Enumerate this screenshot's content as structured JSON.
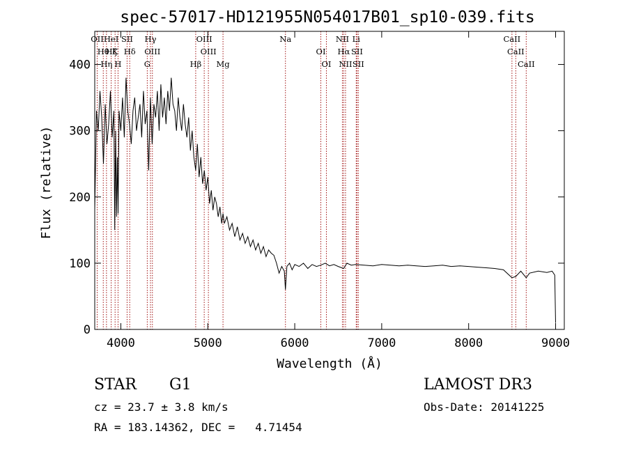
{
  "chart_data": {
    "type": "line",
    "title": "spec-57017-HD121955N054017B01_sp10-039.fits",
    "xlabel": "Wavelength (Å)",
    "ylabel": "Flux (relative)",
    "xlim": [
      3700,
      9100
    ],
    "ylim": [
      0,
      450
    ],
    "xticks": [
      4000,
      5000,
      6000,
      7000,
      8000,
      9000
    ],
    "yticks": [
      0,
      100,
      200,
      300,
      400
    ],
    "grid": false,
    "series": [
      {
        "x": [
          3700,
          3720,
          3740,
          3760,
          3780,
          3800,
          3820,
          3840,
          3860,
          3880,
          3900,
          3920,
          3930,
          3940,
          3950,
          3960,
          3968,
          3980,
          4000,
          4020,
          4040,
          4060,
          4080,
          4100,
          4120,
          4140,
          4160,
          4180,
          4200,
          4220,
          4240,
          4260,
          4280,
          4300,
          4320,
          4340,
          4360,
          4380,
          4400,
          4420,
          4440,
          4460,
          4480,
          4500,
          4520,
          4540,
          4560,
          4580,
          4600,
          4620,
          4640,
          4660,
          4680,
          4700,
          4720,
          4740,
          4760,
          4780,
          4800,
          4820,
          4840,
          4861,
          4880,
          4900,
          4920,
          4940,
          4960,
          4980,
          5000,
          5020,
          5040,
          5060,
          5080,
          5100,
          5120,
          5140,
          5160,
          5175,
          5190,
          5220,
          5250,
          5280,
          5310,
          5340,
          5370,
          5400,
          5430,
          5460,
          5490,
          5520,
          5550,
          5580,
          5610,
          5640,
          5670,
          5700,
          5730,
          5760,
          5790,
          5820,
          5850,
          5880,
          5893,
          5910,
          5940,
          5970,
          6000,
          6050,
          6100,
          6150,
          6200,
          6250,
          6300,
          6350,
          6400,
          6450,
          6500,
          6563,
          6600,
          6650,
          6700,
          6800,
          6900,
          7000,
          7100,
          7200,
          7300,
          7400,
          7500,
          7600,
          7700,
          7800,
          7900,
          8000,
          8100,
          8200,
          8300,
          8400,
          8498,
          8542,
          8600,
          8662,
          8700,
          8800,
          8900,
          8960,
          8990,
          9000
        ],
        "values": [
          180,
          330,
          300,
          360,
          320,
          250,
          340,
          280,
          310,
          360,
          290,
          330,
          150,
          300,
          170,
          260,
          175,
          330,
          300,
          350,
          290,
          380,
          330,
          310,
          280,
          330,
          350,
          300,
          320,
          340,
          290,
          360,
          310,
          330,
          240,
          350,
          280,
          340,
          320,
          360,
          300,
          370,
          320,
          350,
          310,
          360,
          330,
          380,
          340,
          330,
          300,
          350,
          320,
          300,
          340,
          310,
          290,
          320,
          270,
          300,
          260,
          240,
          280,
          230,
          260,
          220,
          240,
          210,
          230,
          190,
          210,
          180,
          200,
          190,
          170,
          185,
          160,
          175,
          160,
          170,
          150,
          160,
          140,
          155,
          135,
          145,
          130,
          140,
          125,
          135,
          120,
          130,
          115,
          125,
          110,
          120,
          115,
          112,
          100,
          85,
          95,
          88,
          60,
          95,
          100,
          90,
          98,
          95,
          100,
          92,
          98,
          95,
          97,
          100,
          96,
          98,
          95,
          92,
          100,
          97,
          98,
          97,
          96,
          98,
          97,
          96,
          97,
          96,
          95,
          96,
          97,
          95,
          96,
          95,
          94,
          93,
          92,
          90,
          78,
          80,
          88,
          78,
          85,
          88,
          86,
          88,
          82,
          10
        ]
      }
    ],
    "lines": [
      {
        "x": 3728,
        "labels": [
          "OII"
        ]
      },
      {
        "x": 3798,
        "labels": [
          "Hθ"
        ]
      },
      {
        "x": 3835,
        "labels": [
          "Hη"
        ]
      },
      {
        "x": 3889,
        "labels": [
          "HeI",
          "Hζ"
        ]
      },
      {
        "x": 3934,
        "labels": [
          "K"
        ]
      },
      {
        "x": 3968,
        "labels": [
          "H"
        ]
      },
      {
        "x": 4072,
        "labels": [
          "SII"
        ]
      },
      {
        "x": 4102,
        "labels": [
          "Hδ"
        ]
      },
      {
        "x": 4304,
        "labels": [
          "G"
        ]
      },
      {
        "x": 4341,
        "labels": [
          "Hγ"
        ]
      },
      {
        "x": 4363,
        "labels": [
          "OIII"
        ]
      },
      {
        "x": 4861,
        "labels": [
          "Hβ"
        ]
      },
      {
        "x": 4959,
        "labels": [
          "OIII"
        ]
      },
      {
        "x": 5007,
        "labels": [
          "OIII"
        ]
      },
      {
        "x": 5175,
        "labels": [
          "Mg"
        ]
      },
      {
        "x": 5893,
        "labels": [
          "Na"
        ]
      },
      {
        "x": 6300,
        "labels": [
          "OI"
        ]
      },
      {
        "x": 6364,
        "labels": [
          "OI"
        ]
      },
      {
        "x": 6548,
        "labels": [
          "NII"
        ]
      },
      {
        "x": 6563,
        "labels": [
          "Hα"
        ]
      },
      {
        "x": 6584,
        "labels": [
          "NII"
        ]
      },
      {
        "x": 6707,
        "labels": [
          "Li"
        ]
      },
      {
        "x": 6716,
        "labels": [
          "SII"
        ]
      },
      {
        "x": 6731,
        "labels": [
          "SII"
        ]
      },
      {
        "x": 8498,
        "labels": [
          "CaII"
        ]
      },
      {
        "x": 8542,
        "labels": [
          "CaII"
        ]
      },
      {
        "x": 8662,
        "labels": [
          "CaII"
        ]
      }
    ]
  },
  "info": {
    "class": "STAR",
    "subclass": "G1",
    "survey": "LAMOST DR3",
    "cz": "cz = 23.7 ± 3.8 km/s",
    "obs_date": "Obs-Date: 20141225",
    "coords": "RA = 183.14362, DEC =   4.71454"
  },
  "colors": {
    "spectrum": "#000000",
    "line_marker": "#a01010",
    "axes": "#000000"
  }
}
